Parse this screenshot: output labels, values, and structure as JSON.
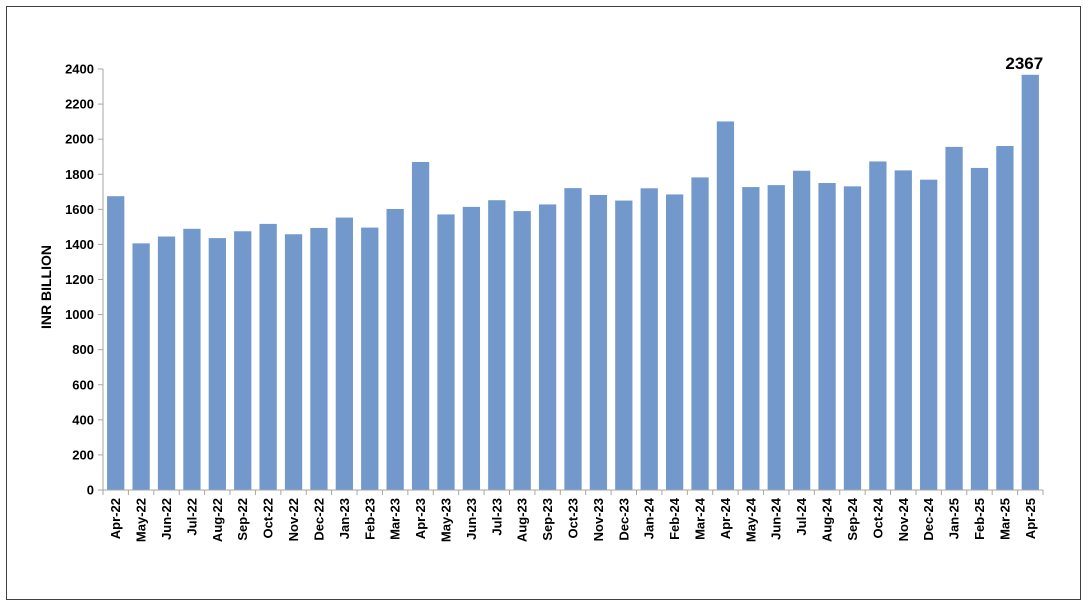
{
  "chart_data": {
    "type": "bar",
    "ylabel": "INR BILLION",
    "xlabel": "",
    "ylim": [
      0,
      2400
    ],
    "ytick_step": 200,
    "grid": false,
    "legend": "none",
    "bar_color": "#7399cc",
    "axis_color": "#a6a6a6",
    "categories": [
      "Apr-22",
      "May-22",
      "Jun-22",
      "Jul-22",
      "Aug-22",
      "Sep-22",
      "Oct-22",
      "Nov-22",
      "Dec-22",
      "Jan-23",
      "Feb-23",
      "Mar-23",
      "Apr-23",
      "May-23",
      "Jun-23",
      "Jul-23",
      "Aug-23",
      "Sep-23",
      "Oct-23",
      "Nov-23",
      "Dec-23",
      "Jan-24",
      "Feb-24",
      "Mar-24",
      "Apr-24",
      "May-24",
      "Jun-24",
      "Jul-24",
      "Aug-24",
      "Sep-24",
      "Oct-24",
      "Nov-24",
      "Dec-24",
      "Jan-25",
      "Feb-25",
      "Mar-25",
      "Apr-25"
    ],
    "values": [
      1675,
      1406,
      1445,
      1489,
      1436,
      1475,
      1517,
      1458,
      1494,
      1553,
      1496,
      1602,
      1870,
      1571,
      1614,
      1652,
      1590,
      1628,
      1721,
      1682,
      1650,
      1720,
      1685,
      1782,
      2101,
      1727,
      1738,
      1820,
      1750,
      1731,
      1873,
      1822,
      1769,
      1956,
      1836,
      1961,
      2367
    ],
    "data_labels": [
      {
        "category": "Apr-25",
        "text": "2367"
      }
    ]
  }
}
